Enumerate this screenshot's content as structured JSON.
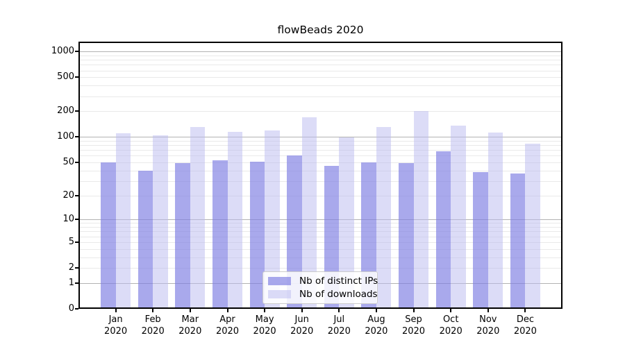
{
  "chart_data": {
    "type": "bar",
    "title": "flowBeads 2020",
    "xlabel": "",
    "ylabel": "",
    "categories": [
      "Jan",
      "Feb",
      "Mar",
      "Apr",
      "May",
      "Jun",
      "Jul",
      "Aug",
      "Sep",
      "Oct",
      "Nov",
      "Dec"
    ],
    "category_year": "2020",
    "series": [
      {
        "name": "Nb of distinct IPs",
        "color": "rgba(124,124,226,0.66)",
        "legend_color": "rgba(124,124,226,0.66)",
        "values": [
          50,
          40,
          49,
          53,
          51,
          60,
          45,
          50,
          49,
          68,
          38,
          37
        ]
      },
      {
        "name": "Nb of downloads",
        "color": "rgba(186,186,240,0.5)",
        "legend_color": "rgba(186,186,240,0.5)",
        "values": [
          110,
          105,
          130,
          115,
          120,
          170,
          98,
          130,
          200,
          135,
          112,
          83
        ]
      }
    ],
    "yscale": "log1p",
    "ylim": [
      0,
      1300
    ],
    "yticks": [
      0,
      1,
      2,
      5,
      10,
      20,
      50,
      100,
      200,
      500,
      1000
    ],
    "major_gridlines": [
      1,
      10,
      100,
      1000
    ],
    "grid": true,
    "legend_position": "lower center"
  },
  "colors": {
    "major_grid": "#b2b2b2",
    "minor_grid": "#e9e9e9",
    "spine": "#000000",
    "legend_border": "#cccccc",
    "background": "#ffffff"
  }
}
